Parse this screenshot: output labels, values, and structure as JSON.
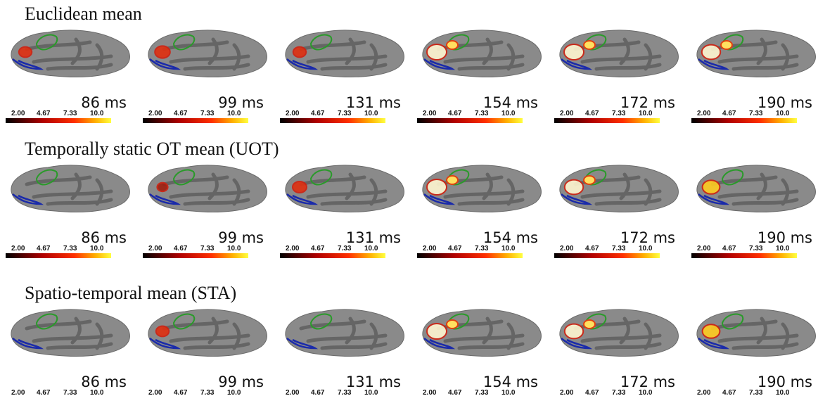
{
  "rows": [
    {
      "title": "Euclidean mean",
      "panels": [
        "86 ms",
        "99 ms",
        "131 ms",
        "154 ms",
        "172 ms",
        "190 ms"
      ]
    },
    {
      "title": "Temporally static OT mean (UOT)",
      "panels": [
        "86 ms",
        "99 ms",
        "131 ms",
        "154 ms",
        "172 ms",
        "190 ms"
      ]
    },
    {
      "title": "Spatio-temporal mean (STA)",
      "panels": [
        "86 ms",
        "99 ms",
        "131 ms",
        "154 ms",
        "172 ms",
        "190 ms"
      ]
    }
  ],
  "colorbar": {
    "ticks": [
      "2.00",
      "4.67",
      "7.33",
      "10.0"
    ]
  }
}
